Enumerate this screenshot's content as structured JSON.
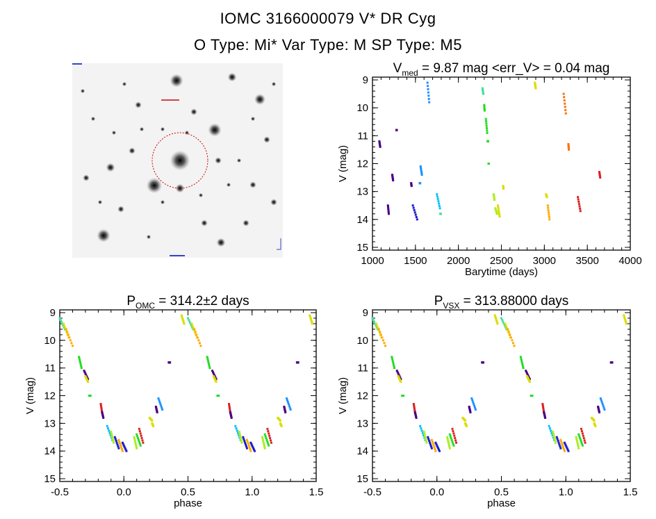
{
  "header": {
    "title_line1": "IOMC 3166000079    V* DR Cyg",
    "title_line2": "O Type: Mi*  Var Type: M  SP Type: M5"
  },
  "sky_image": {
    "tiny_labels": [
      "",
      "",
      "",
      "",
      ""
    ]
  },
  "colors": {
    "circle": "#d00000",
    "axes": "#000000",
    "palette": [
      "#4b0082",
      "#1c1ccc",
      "#1e90ff",
      "#00bfff",
      "#40e0a0",
      "#22dd22",
      "#aaee22",
      "#dddd00",
      "#ffaa00",
      "#ff7000",
      "#dd2222"
    ]
  },
  "chart_data": [
    {
      "id": "lightcurve",
      "type": "scatter",
      "title_main": "V",
      "title_sub": "med",
      "title_rest": " = 9.87 mag <err_V> = 0.04 mag",
      "xlabel": "Barytime (days)",
      "ylabel": "V (mag)",
      "xlim": [
        1000,
        4000
      ],
      "ylim": [
        15.1,
        8.9
      ],
      "xticks": [
        1000,
        1500,
        2000,
        2500,
        3000,
        3500,
        4000
      ],
      "yticks": [
        9,
        10,
        11,
        12,
        13,
        14,
        15
      ],
      "segments": [
        {
          "x0": 1080,
          "x1": 1090,
          "y0": 11.2,
          "y1": 11.4,
          "c": 0
        },
        {
          "x0": 1180,
          "x1": 1190,
          "y0": 13.5,
          "y1": 13.8,
          "c": 0
        },
        {
          "x0": 1230,
          "x1": 1240,
          "y0": 12.4,
          "y1": 12.6,
          "c": 0
        },
        {
          "x0": 1280,
          "x1": 1282,
          "y0": 10.8,
          "y1": 10.8,
          "c": 0
        },
        {
          "x0": 1450,
          "x1": 1455,
          "y0": 12.7,
          "y1": 12.8,
          "c": 0
        },
        {
          "x0": 1470,
          "x1": 1520,
          "y0": 13.5,
          "y1": 14.0,
          "c": 1
        },
        {
          "x0": 1560,
          "x1": 1575,
          "y0": 12.1,
          "y1": 12.4,
          "c": 2
        },
        {
          "x0": 1550,
          "x1": 1555,
          "y0": 12.7,
          "y1": 12.7,
          "c": 2
        },
        {
          "x0": 1640,
          "x1": 1660,
          "y0": 9.1,
          "y1": 9.8,
          "c": 2
        },
        {
          "x0": 1750,
          "x1": 1785,
          "y0": 13.1,
          "y1": 13.6,
          "c": 3
        },
        {
          "x0": 1790,
          "x1": 1795,
          "y0": 13.8,
          "y1": 13.8,
          "c": 4
        },
        {
          "x0": 2280,
          "x1": 2290,
          "y0": 9.3,
          "y1": 9.5,
          "c": 4
        },
        {
          "x0": 2300,
          "x1": 2305,
          "y0": 9.9,
          "y1": 10.1,
          "c": 5
        },
        {
          "x0": 2320,
          "x1": 2335,
          "y0": 10.4,
          "y1": 10.9,
          "c": 5
        },
        {
          "x0": 2340,
          "x1": 2345,
          "y0": 11.2,
          "y1": 11.2,
          "c": 5
        },
        {
          "x0": 2350,
          "x1": 2353,
          "y0": 12.0,
          "y1": 12.0,
          "c": 5
        },
        {
          "x0": 2410,
          "x1": 2420,
          "y0": 13.1,
          "y1": 13.3,
          "c": 6
        },
        {
          "x0": 2430,
          "x1": 2450,
          "y0": 13.6,
          "y1": 13.8,
          "c": 6
        },
        {
          "x0": 2460,
          "x1": 2480,
          "y0": 13.5,
          "y1": 13.9,
          "c": 7
        },
        {
          "x0": 2520,
          "x1": 2525,
          "y0": 12.8,
          "y1": 12.9,
          "c": 7
        },
        {
          "x0": 2890,
          "x1": 2900,
          "y0": 9.1,
          "y1": 9.3,
          "c": 7
        },
        {
          "x0": 3020,
          "x1": 3030,
          "y0": 13.1,
          "y1": 13.2,
          "c": 7
        },
        {
          "x0": 3040,
          "x1": 3060,
          "y0": 13.5,
          "y1": 14.0,
          "c": 8
        },
        {
          "x0": 3225,
          "x1": 3250,
          "y0": 9.5,
          "y1": 10.2,
          "c": 9
        },
        {
          "x0": 3280,
          "x1": 3285,
          "y0": 11.3,
          "y1": 11.5,
          "c": 9
        },
        {
          "x0": 3390,
          "x1": 3420,
          "y0": 13.2,
          "y1": 13.7,
          "c": 10
        },
        {
          "x0": 3640,
          "x1": 3650,
          "y0": 12.3,
          "y1": 12.5,
          "c": 10
        }
      ]
    },
    {
      "id": "phase_omc",
      "type": "scatter",
      "title_main": "P",
      "title_sub": "OMC",
      "title_rest": " = 314.2±2 days",
      "xlabel": "phase",
      "ylabel": "V (mag)",
      "xlim": [
        -0.5,
        1.5
      ],
      "ylim": [
        15.1,
        8.9
      ],
      "xticks": [
        "-0.5",
        "0.0",
        "0.5",
        "1.0",
        "1.5"
      ],
      "yticks": [
        9,
        10,
        11,
        12,
        13,
        14,
        15
      ],
      "curve": [
        {
          "x0": -0.5,
          "x1": -0.46,
          "y0": 9.2,
          "y1": 9.6,
          "c": 4
        },
        {
          "x0": -0.47,
          "x1": -0.43,
          "y0": 9.4,
          "y1": 9.9,
          "c": 7
        },
        {
          "x0": -0.45,
          "x1": -0.4,
          "y0": 9.6,
          "y1": 10.2,
          "c": 8
        },
        {
          "x0": -0.35,
          "x1": -0.33,
          "y0": 10.6,
          "y1": 11.0,
          "c": 5
        },
        {
          "x0": -0.31,
          "x1": -0.28,
          "y0": 11.1,
          "y1": 11.4,
          "c": 0
        },
        {
          "x0": -0.3,
          "x1": -0.28,
          "y0": 11.3,
          "y1": 11.5,
          "c": 7
        },
        {
          "x0": -0.27,
          "x1": -0.26,
          "y0": 12.0,
          "y1": 12.0,
          "c": 5
        },
        {
          "x0": -0.18,
          "x1": -0.17,
          "y0": 12.3,
          "y1": 12.6,
          "c": 10
        },
        {
          "x0": -0.17,
          "x1": -0.16,
          "y0": 12.6,
          "y1": 12.8,
          "c": 0
        },
        {
          "x0": -0.13,
          "x1": -0.09,
          "y0": 13.1,
          "y1": 13.6,
          "c": 3
        },
        {
          "x0": -0.1,
          "x1": -0.08,
          "y0": 13.3,
          "y1": 13.7,
          "c": 6
        },
        {
          "x0": -0.07,
          "x1": -0.04,
          "y0": 13.5,
          "y1": 13.9,
          "c": 1
        },
        {
          "x0": -0.04,
          "x1": -0.01,
          "y0": 13.6,
          "y1": 14.0,
          "c": 8
        },
        {
          "x0": -0.01,
          "x1": 0.02,
          "y0": 13.7,
          "y1": 14.0,
          "c": 1
        },
        {
          "x0": 0.08,
          "x1": 0.1,
          "y0": 13.5,
          "y1": 13.9,
          "c": 6
        },
        {
          "x0": 0.1,
          "x1": 0.13,
          "y0": 13.4,
          "y1": 13.8,
          "c": 5
        },
        {
          "x0": 0.12,
          "x1": 0.15,
          "y0": 13.2,
          "y1": 13.7,
          "c": 10
        },
        {
          "x0": 0.2,
          "x1": 0.22,
          "y0": 12.8,
          "y1": 12.9,
          "c": 7
        },
        {
          "x0": 0.22,
          "x1": 0.23,
          "y0": 13.0,
          "y1": 13.1,
          "c": 7
        },
        {
          "x0": 0.25,
          "x1": 0.26,
          "y0": 12.4,
          "y1": 12.6,
          "c": 0
        },
        {
          "x0": 0.27,
          "x1": 0.3,
          "y0": 12.1,
          "y1": 12.5,
          "c": 2
        },
        {
          "x0": 0.35,
          "x1": 0.36,
          "y0": 10.8,
          "y1": 10.8,
          "c": 0
        },
        {
          "x0": 0.45,
          "x1": 0.47,
          "y0": 9.1,
          "y1": 9.4,
          "c": 7
        }
      ]
    },
    {
      "id": "phase_vsx",
      "type": "scatter",
      "title_main": "P",
      "title_sub": "VSX",
      "title_rest": " = 313.88000 days",
      "xlabel": "phase",
      "ylabel": "V (mag)",
      "xlim": [
        -0.5,
        1.5
      ],
      "ylim": [
        15.1,
        8.9
      ],
      "xticks": [
        "-0.5",
        "0.0",
        "0.5",
        "1.0",
        "1.5"
      ],
      "yticks": [
        9,
        10,
        11,
        12,
        13,
        14,
        15
      ]
    }
  ]
}
